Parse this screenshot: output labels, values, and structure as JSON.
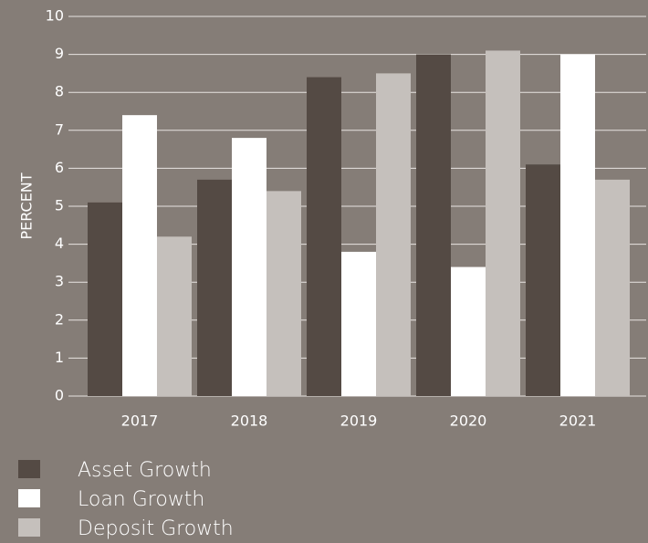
{
  "chart_data": {
    "type": "bar",
    "y_label": "PERCENT",
    "categories": [
      "2017",
      "2018",
      "2019",
      "2020",
      "2021"
    ],
    "series": [
      {
        "name": "Asset Growth",
        "color": "#544a44",
        "values": [
          5.1,
          5.7,
          8.4,
          9.0,
          6.1
        ]
      },
      {
        "name": "Loan Growth",
        "color": "#ffffff",
        "values": [
          7.4,
          6.8,
          3.8,
          3.4,
          9.0
        ]
      },
      {
        "name": "Deposit Growth",
        "color": "#c5c0bc",
        "values": [
          4.2,
          5.4,
          8.5,
          9.1,
          5.7
        ]
      }
    ],
    "ylim": [
      0,
      10
    ],
    "yticks": [
      0,
      1,
      2,
      3,
      4,
      5,
      6,
      7,
      8,
      9,
      10
    ],
    "grid": true,
    "legend": "bottom-left"
  }
}
